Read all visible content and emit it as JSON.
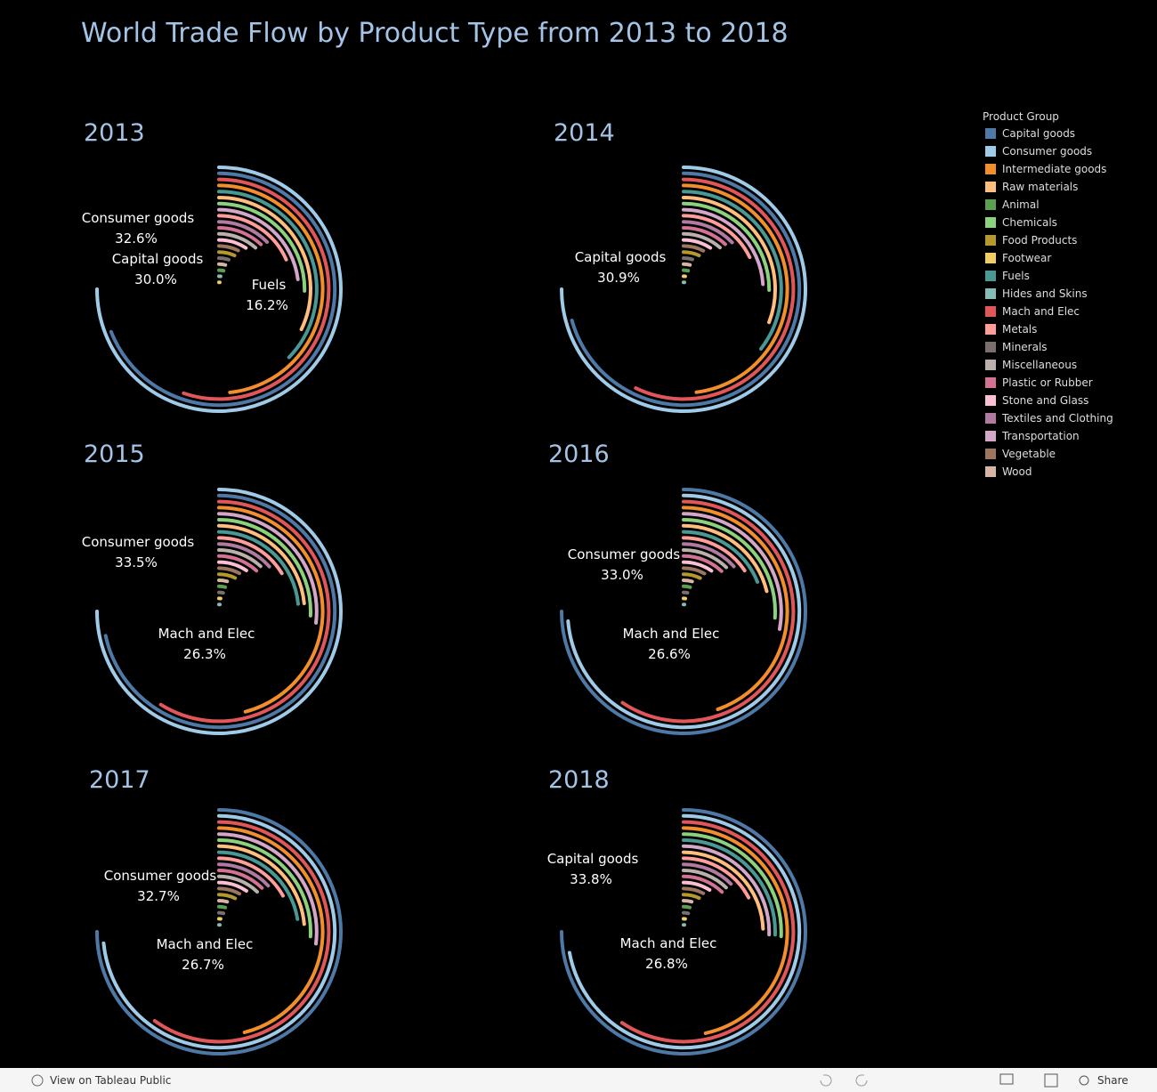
{
  "title": "World Trade Flow by Product Type from 2013 to 2018",
  "legend": {
    "title": "Product Group",
    "items": [
      {
        "name": "Capital goods",
        "color": "#4e79a7"
      },
      {
        "name": "Consumer goods",
        "color": "#a0cbe8"
      },
      {
        "name": "Intermediate goods",
        "color": "#f28e2b"
      },
      {
        "name": "Raw materials",
        "color": "#ffbe7d"
      },
      {
        "name": "Animal",
        "color": "#59a14f"
      },
      {
        "name": "Chemicals",
        "color": "#8cd17d"
      },
      {
        "name": "Food Products",
        "color": "#b6992d"
      },
      {
        "name": "Footwear",
        "color": "#f1ce63"
      },
      {
        "name": "Fuels",
        "color": "#499894"
      },
      {
        "name": "Hides and Skins",
        "color": "#86bcb6"
      },
      {
        "name": "Mach and Elec",
        "color": "#e15759"
      },
      {
        "name": "Metals",
        "color": "#ff9d9a"
      },
      {
        "name": "Minerals",
        "color": "#79706e"
      },
      {
        "name": "Miscellaneous",
        "color": "#bab0ac"
      },
      {
        "name": "Plastic or Rubber",
        "color": "#d37295"
      },
      {
        "name": "Stone and Glass",
        "color": "#fabfd2"
      },
      {
        "name": "Textiles and Clothing",
        "color": "#b07aa1"
      },
      {
        "name": "Transportation",
        "color": "#d4a6c8"
      },
      {
        "name": "Vegetable",
        "color": "#9d7660"
      },
      {
        "name": "Wood",
        "color": "#d7b5a6"
      }
    ]
  },
  "chart_data": [
    {
      "type": "radial-bar",
      "title": "2013",
      "values": [
        30.0,
        32.6,
        21,
        14,
        1.7,
        11,
        3,
        0.8,
        16.2,
        0.9,
        24,
        8,
        2.2,
        5,
        5.2,
        4,
        5.5,
        10,
        3.2,
        1.8
      ],
      "value_labels": [
        "30.0%",
        "32.6%",
        null,
        null,
        null,
        null,
        null,
        null,
        "16.2%",
        null,
        null,
        null,
        null,
        null,
        null,
        null,
        null,
        null,
        null,
        null
      ]
    },
    {
      "type": "radial-bar",
      "title": "2014",
      "values": [
        30.9,
        32.8,
        21,
        13.5,
        1.7,
        11,
        3,
        0.9,
        15.5,
        0.9,
        25,
        7.8,
        2,
        5,
        5.2,
        4,
        5.6,
        10.5,
        3.3,
        1.8
      ],
      "value_labels": [
        "30.9%",
        null,
        null,
        null,
        null,
        null,
        null,
        null,
        null,
        null,
        null,
        null,
        null,
        null,
        null,
        null,
        null,
        null,
        null,
        null
      ]
    },
    {
      "type": "radial-bar",
      "title": "2015",
      "values": [
        32,
        33.5,
        20.5,
        10.5,
        1.8,
        11.5,
        3.2,
        0.9,
        10.5,
        0.9,
        26.3,
        7.3,
        1.6,
        5.3,
        5.3,
        4.2,
        6,
        12,
        3.5,
        1.9
      ],
      "value_labels": [
        null,
        "33.5%",
        null,
        null,
        null,
        null,
        null,
        null,
        null,
        null,
        "26.3%",
        null,
        null,
        null,
        null,
        null,
        null,
        null,
        null,
        null
      ]
    },
    {
      "type": "radial-bar",
      "title": "2016",
      "values": [
        33.6,
        33.0,
        20,
        9.5,
        1.9,
        11.7,
        3.3,
        1,
        8.5,
        0.9,
        26.6,
        7,
        1.5,
        5.5,
        5.4,
        4.3,
        6,
        12.5,
        3.6,
        2
      ],
      "value_labels": [
        null,
        "33.0%",
        null,
        null,
        null,
        null,
        null,
        null,
        null,
        null,
        "26.6%",
        null,
        null,
        null,
        null,
        null,
        null,
        null,
        null,
        null
      ]
    },
    {
      "type": "radial-bar",
      "title": "2017",
      "values": [
        33.4,
        32.7,
        20.5,
        10.5,
        1.8,
        11.5,
        3.2,
        0.9,
        10,
        0.9,
        26.7,
        7.5,
        1.7,
        5.4,
        5.5,
        4.2,
        5.8,
        12,
        3.5,
        1.9
      ],
      "value_labels": [
        null,
        "32.7%",
        null,
        null,
        null,
        null,
        null,
        null,
        null,
        null,
        "26.7%",
        null,
        null,
        null,
        null,
        null,
        null,
        null,
        null,
        null
      ]
    },
    {
      "type": "radial-bar",
      "title": "2018",
      "values": [
        33.8,
        32.5,
        21,
        11,
        1.8,
        11.6,
        3.1,
        0.9,
        11.5,
        0.9,
        26.8,
        7.8,
        1.8,
        5.5,
        5.5,
        4,
        5.6,
        11.5,
        3.4,
        1.9
      ],
      "value_labels": [
        "33.8%",
        null,
        null,
        null,
        null,
        null,
        null,
        null,
        null,
        null,
        "26.8%",
        null,
        null,
        null,
        null,
        null,
        null,
        null,
        null,
        null
      ]
    }
  ],
  "footer": {
    "link": "View on Tableau Public",
    "share": "Share"
  }
}
